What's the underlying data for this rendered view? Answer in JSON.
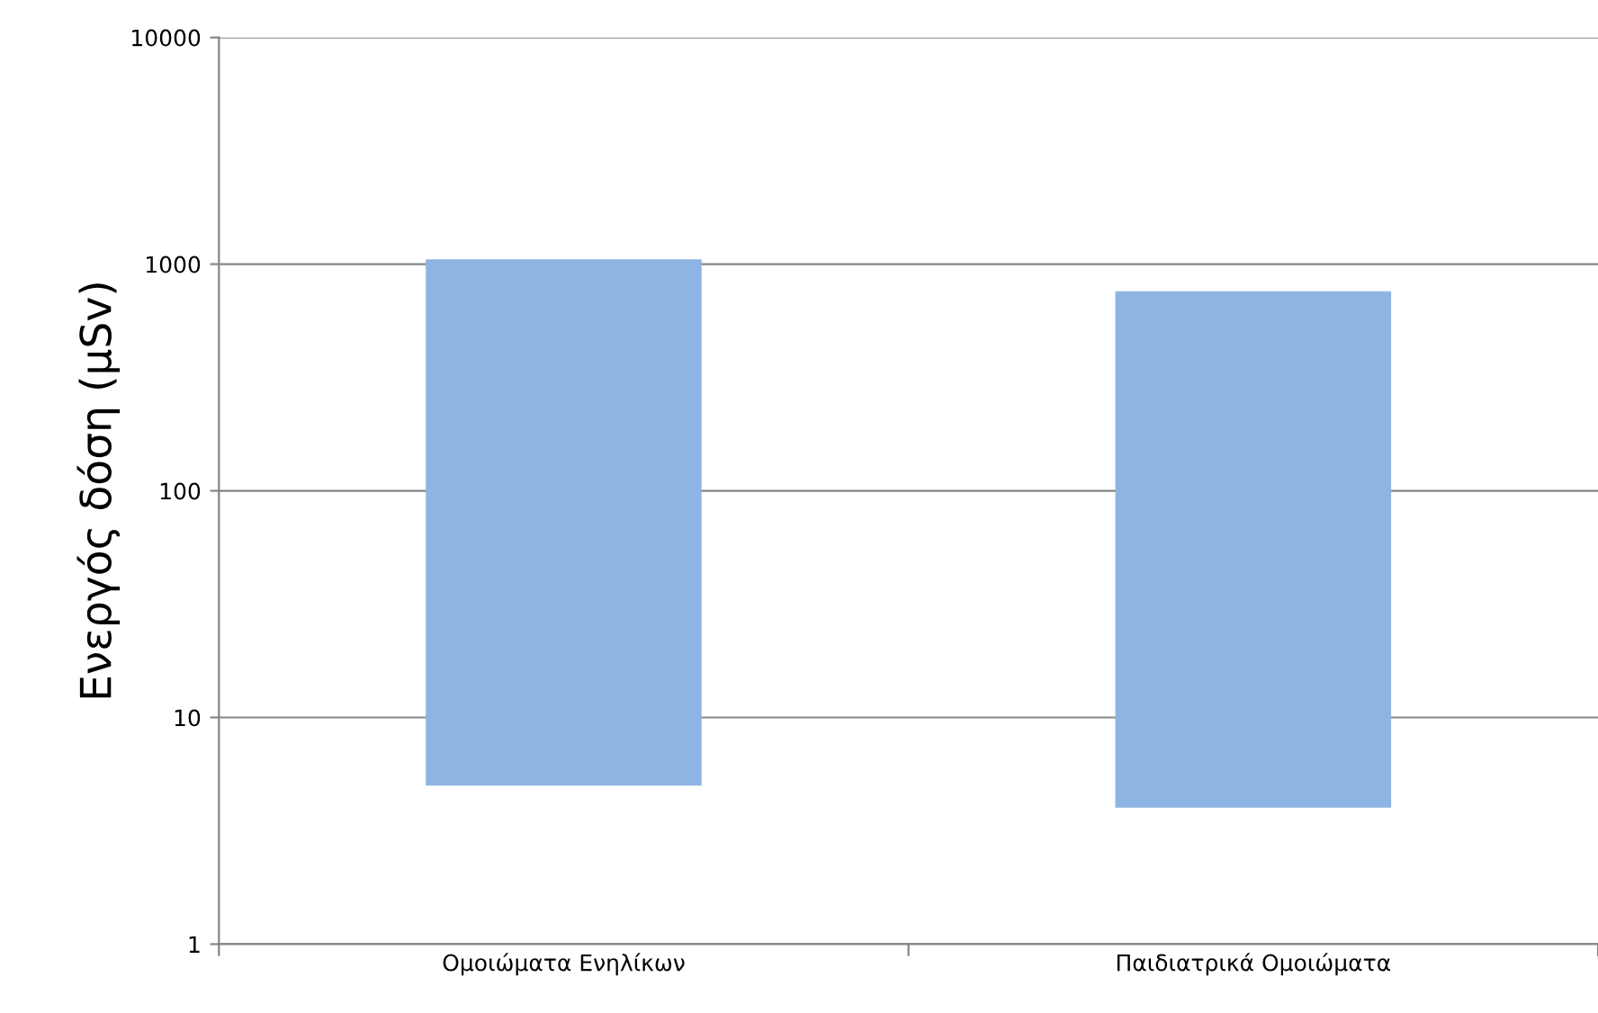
{
  "chart_data": {
    "type": "bar",
    "ylabel": "Ενεργός δόση (μSv)",
    "categories": [
      "Ομοιώματα Ενηλίκων",
      "Παιδιατρικά Ομοιώματα"
    ],
    "base": [
      5,
      4
    ],
    "values": [
      1045,
      756
    ],
    "color": "#8eb4e3",
    "log": true,
    "ylim": [
      1,
      10000
    ],
    "yticks": [
      1,
      10,
      100,
      1000,
      10000
    ],
    "grid": "y"
  }
}
